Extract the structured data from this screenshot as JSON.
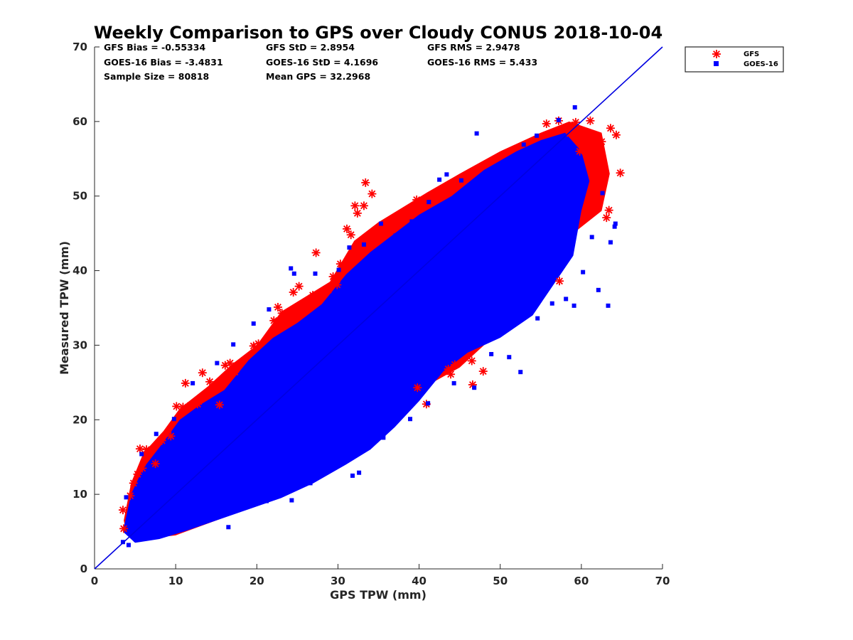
{
  "chart_data": {
    "type": "scatter",
    "title": "Weekly Comparison to GPS over Cloudy CONUS 2018-10-04",
    "xlabel": "GPS TPW (mm)",
    "ylabel": "Measured TPW (mm)",
    "xlim": [
      0,
      70
    ],
    "ylim": [
      0,
      70
    ],
    "xticks": [
      "0",
      "10",
      "20",
      "30",
      "40",
      "50",
      "60",
      "70"
    ],
    "yticks": [
      "0",
      "10",
      "20",
      "30",
      "40",
      "50",
      "60",
      "70"
    ],
    "grid": false,
    "legend_position": "top-right, outside plot",
    "stats": [
      [
        "GFS Bias = -0.55334",
        "GFS StD = 2.8954",
        "GFS RMS = 2.9478"
      ],
      [
        "GOES-16 Bias = -3.4831",
        "GOES-16 StD = 4.1696",
        "GOES-16 RMS = 5.433"
      ],
      [
        "Sample Size = 80818",
        "Mean GPS = 32.2968",
        ""
      ]
    ],
    "reference_line": {
      "x": [
        0,
        70
      ],
      "y": [
        0,
        70
      ],
      "color": "#0000e0"
    },
    "series": [
      {
        "name": "GFS",
        "marker": "asterisk",
        "color": "#ff0000",
        "points": [
          [
            3.5,
            7.9
          ],
          [
            3.6,
            5.4
          ],
          [
            4.4,
            9.8
          ],
          [
            4.8,
            11.5
          ],
          [
            5.3,
            12.7
          ],
          [
            5.6,
            16.1
          ],
          [
            6.4,
            16.0
          ],
          [
            5.9,
            13.5
          ],
          [
            7.5,
            14.1
          ],
          [
            8.3,
            17.2
          ],
          [
            9.4,
            17.8
          ],
          [
            10.1,
            21.8
          ],
          [
            10.9,
            21.7
          ],
          [
            11.2,
            24.9
          ],
          [
            11.8,
            21.9
          ],
          [
            12.7,
            22.1
          ],
          [
            13.3,
            26.3
          ],
          [
            13.5,
            23.3
          ],
          [
            14.2,
            25.1
          ],
          [
            15.4,
            22.0
          ],
          [
            16.1,
            27.3
          ],
          [
            16.7,
            27.6
          ],
          [
            17.3,
            26.4
          ],
          [
            19.6,
            29.9
          ],
          [
            20.2,
            30.2
          ],
          [
            22.1,
            33.3
          ],
          [
            22.6,
            35.1
          ],
          [
            23.1,
            34.3
          ],
          [
            24.5,
            37.1
          ],
          [
            25.2,
            37.9
          ],
          [
            26.2,
            35.8
          ],
          [
            26.9,
            36.7
          ],
          [
            27.3,
            42.4
          ],
          [
            28.8,
            37.4
          ],
          [
            29.4,
            39.2
          ],
          [
            29.9,
            38.1
          ],
          [
            30.3,
            40.9
          ],
          [
            31.1,
            45.6
          ],
          [
            31.6,
            44.8
          ],
          [
            32.1,
            48.7
          ],
          [
            32.4,
            47.7
          ],
          [
            33.2,
            48.7
          ],
          [
            33.4,
            51.8
          ],
          [
            34.2,
            50.3
          ],
          [
            33.6,
            43.8
          ],
          [
            32.9,
            43.1
          ],
          [
            39.7,
            49.5
          ],
          [
            40.9,
            22.1
          ],
          [
            39.8,
            24.3
          ],
          [
            43.6,
            26.8
          ],
          [
            44.4,
            27.4
          ],
          [
            43.9,
            26.1
          ],
          [
            46.6,
            24.7
          ],
          [
            46.5,
            27.9
          ],
          [
            47.9,
            26.5
          ],
          [
            57.3,
            38.6
          ],
          [
            55.7,
            59.7
          ],
          [
            57.2,
            60.1
          ],
          [
            58.6,
            58.4
          ],
          [
            59.3,
            59.9
          ],
          [
            60.1,
            57.4
          ],
          [
            60.6,
            57.2
          ],
          [
            61.1,
            60.1
          ],
          [
            61.7,
            58.2
          ],
          [
            62.2,
            55.8
          ],
          [
            62.5,
            57.3
          ],
          [
            63.6,
            59.1
          ],
          [
            64.3,
            58.2
          ],
          [
            62.4,
            53.8
          ],
          [
            61.6,
            51.9
          ],
          [
            63.4,
            48.1
          ],
          [
            64.8,
            53.1
          ],
          [
            63.1,
            47.1
          ],
          [
            59.8,
            56.0
          ]
        ]
      },
      {
        "name": "GOES-16",
        "marker": "square",
        "color": "#0000ff",
        "points": [
          [
            3.5,
            3.6
          ],
          [
            4.2,
            3.2
          ],
          [
            5.1,
            3.9
          ],
          [
            6.3,
            4.4
          ],
          [
            7.6,
            5.1
          ],
          [
            9.2,
            5.9
          ],
          [
            11.8,
            6.6
          ],
          [
            14.2,
            7.3
          ],
          [
            16.5,
            5.6
          ],
          [
            18.1,
            8.9
          ],
          [
            21.2,
            9.1
          ],
          [
            24.3,
            9.2
          ],
          [
            26.6,
            11.5
          ],
          [
            28.4,
            13.1
          ],
          [
            31.8,
            12.5
          ],
          [
            32.6,
            12.9
          ],
          [
            35.6,
            17.6
          ],
          [
            38.9,
            20.1
          ],
          [
            41.1,
            22.2
          ],
          [
            44.3,
            24.9
          ],
          [
            46.8,
            24.3
          ],
          [
            48.9,
            28.8
          ],
          [
            51.1,
            28.4
          ],
          [
            52.5,
            26.4
          ],
          [
            54.6,
            33.6
          ],
          [
            56.4,
            35.6
          ],
          [
            58.1,
            36.2
          ],
          [
            59.1,
            35.3
          ],
          [
            60.2,
            39.8
          ],
          [
            62.1,
            37.4
          ],
          [
            63.3,
            35.3
          ],
          [
            64.1,
            45.9
          ],
          [
            64.2,
            46.3
          ],
          [
            63.6,
            43.8
          ],
          [
            61.3,
            44.5
          ],
          [
            59.8,
            49.8
          ],
          [
            62.6,
            50.4
          ],
          [
            59.2,
            61.9
          ],
          [
            57.2,
            60.2
          ],
          [
            54.5,
            58.1
          ],
          [
            52.9,
            56.9
          ],
          [
            49.9,
            53.1
          ],
          [
            48.1,
            51.8
          ],
          [
            47.1,
            58.4
          ],
          [
            45.2,
            52.1
          ],
          [
            43.4,
            52.9
          ],
          [
            42.5,
            52.2
          ],
          [
            41.2,
            49.2
          ],
          [
            39.1,
            46.6
          ],
          [
            37.1,
            44.7
          ],
          [
            35.3,
            46.3
          ],
          [
            33.2,
            43.5
          ],
          [
            31.4,
            43.1
          ],
          [
            30.1,
            40.1
          ],
          [
            27.2,
            39.6
          ],
          [
            24.2,
            40.3
          ],
          [
            24.6,
            39.6
          ],
          [
            21.5,
            34.8
          ],
          [
            19.6,
            32.9
          ],
          [
            17.1,
            30.1
          ],
          [
            15.1,
            27.6
          ],
          [
            12.1,
            24.9
          ],
          [
            9.8,
            20.1
          ],
          [
            7.6,
            18.1
          ],
          [
            5.8,
            15.4
          ],
          [
            3.9,
            9.6
          ]
        ]
      }
    ]
  }
}
